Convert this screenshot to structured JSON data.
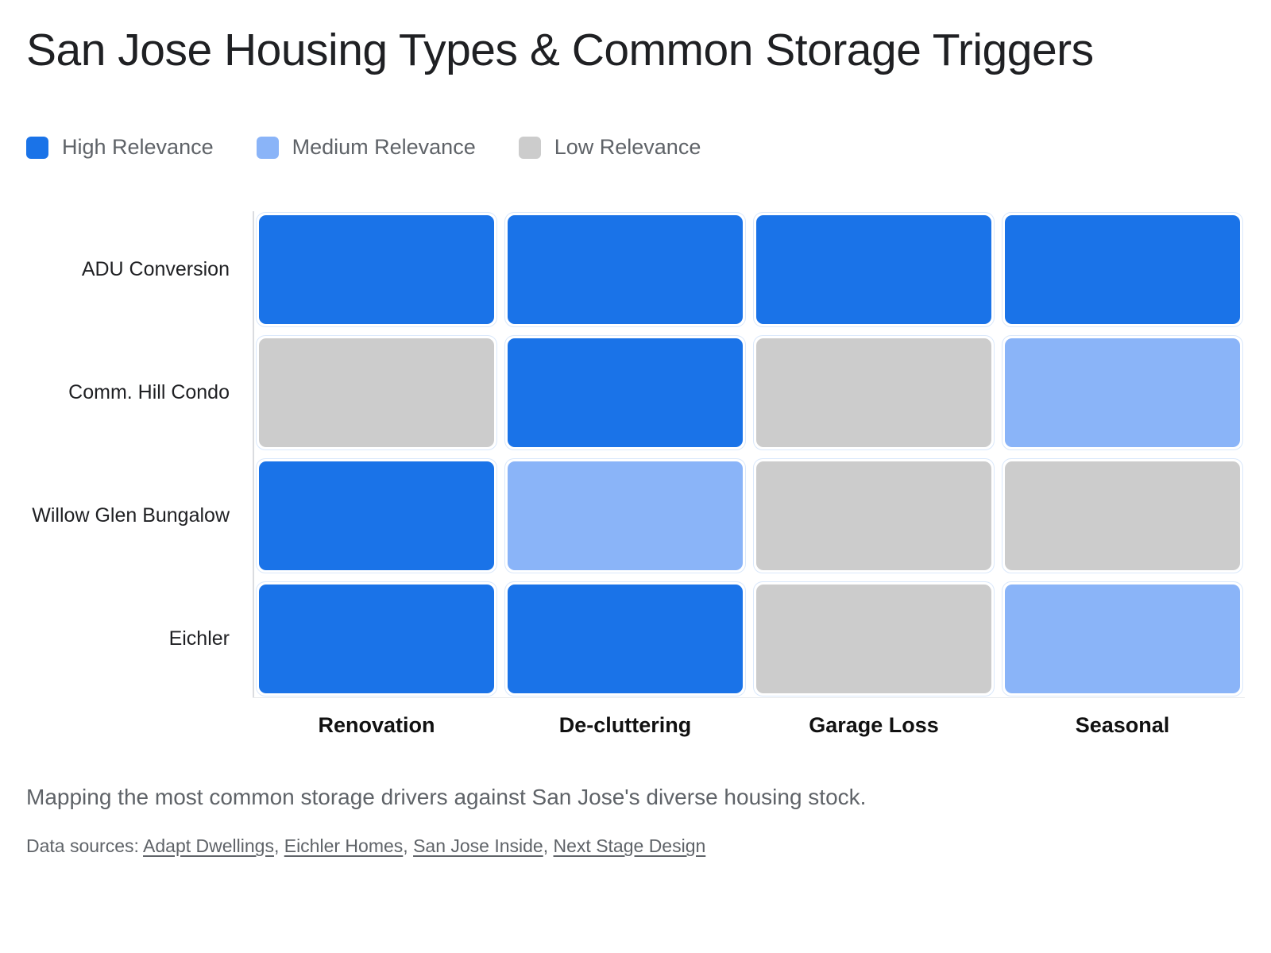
{
  "title": "San Jose Housing Types & Common Storage Triggers",
  "legend": {
    "items": [
      {
        "key": "high",
        "label": "High Relevance",
        "color": "#1a73e8"
      },
      {
        "key": "medium",
        "label": "Medium Relevance",
        "color": "#8ab4f8"
      },
      {
        "key": "low",
        "label": "Low Relevance",
        "color": "#cccccc"
      }
    ]
  },
  "chart_data": {
    "type": "heatmap",
    "rows": [
      "ADU Conversion",
      "Comm. Hill Condo",
      "Willow Glen Bungalow",
      "Eichler"
    ],
    "columns": [
      "Renovation",
      "De-cluttering",
      "Garage Loss",
      "Seasonal"
    ],
    "values": [
      [
        "high",
        "high",
        "high",
        "high"
      ],
      [
        "low",
        "high",
        "low",
        "medium"
      ],
      [
        "high",
        "medium",
        "low",
        "low"
      ],
      [
        "high",
        "high",
        "low",
        "medium"
      ]
    ],
    "value_labels": {
      "high": "High Relevance",
      "medium": "Medium Relevance",
      "low": "Low Relevance"
    },
    "colors": {
      "high": "#1a73e8",
      "medium": "#8ab4f8",
      "low": "#cccccc"
    },
    "grid": "off",
    "legend_position": "top-left"
  },
  "footer": {
    "caption": "Mapping the most common storage drivers against San Jose's diverse housing stock.",
    "sources_prefix": "Data sources: ",
    "sources_separator": ", ",
    "sources": [
      "Adapt Dwellings",
      "Eichler Homes",
      "San Jose Inside",
      "Next Stage Design"
    ]
  }
}
